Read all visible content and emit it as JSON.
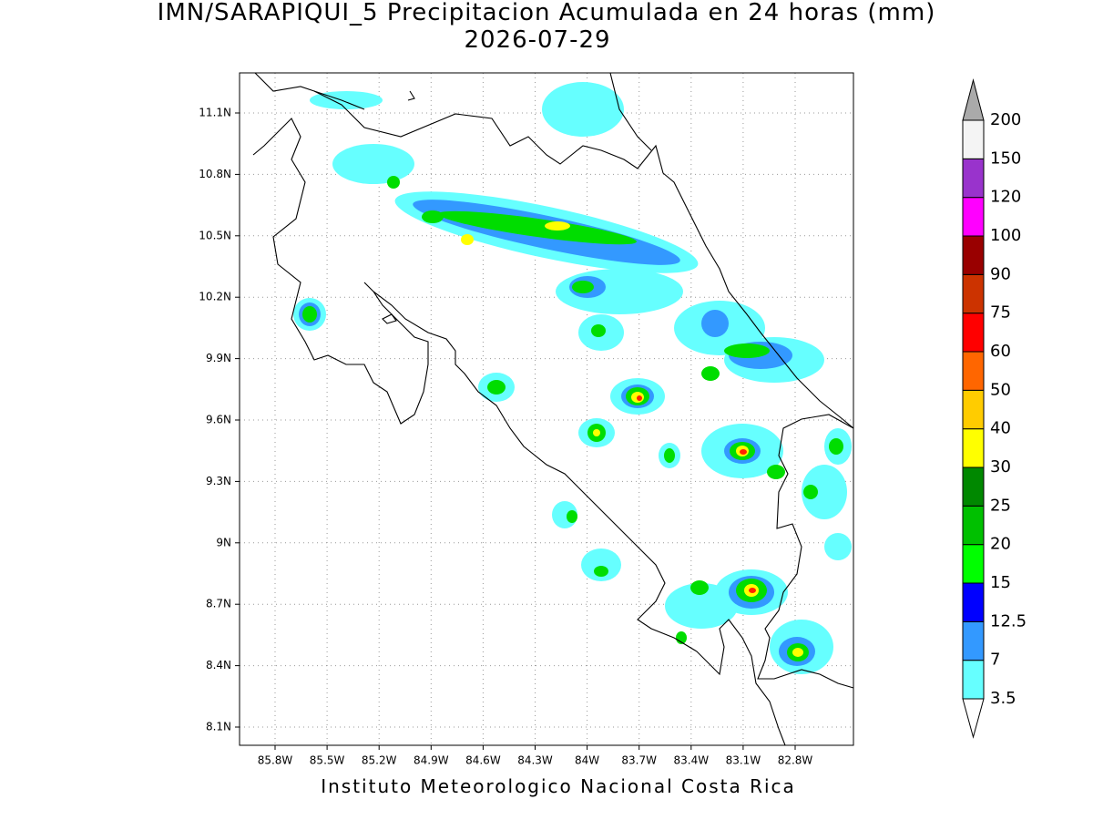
{
  "title": "IMN/SARAPIQUI_5 Precipitacion Acumulada en 24 horas (mm)",
  "date": "2026-07-29",
  "footer": "Instituto Meteorologico Nacional Costa Rica",
  "map": {
    "lat_ticks": [
      {
        "value": 11.1,
        "label": "11.1N"
      },
      {
        "value": 10.8,
        "label": "10.8N"
      },
      {
        "value": 10.5,
        "label": "10.5N"
      },
      {
        "value": 10.2,
        "label": "10.2N"
      },
      {
        "value": 9.9,
        "label": "9.9N"
      },
      {
        "value": 9.6,
        "label": "9.6N"
      },
      {
        "value": 9.3,
        "label": "9.3N"
      },
      {
        "value": 9,
        "label": "9N"
      },
      {
        "value": 8.7,
        "label": "8.7N"
      },
      {
        "value": 8.4,
        "label": "8.4N"
      },
      {
        "value": 8.1,
        "label": "8.1N"
      }
    ],
    "lon_ticks": [
      {
        "value": -85.8,
        "label": "85.8W"
      },
      {
        "value": -85.5,
        "label": "85.5W"
      },
      {
        "value": -85.2,
        "label": "85.2W"
      },
      {
        "value": -84.9,
        "label": "84.9W"
      },
      {
        "value": -84.6,
        "label": "84.6W"
      },
      {
        "value": -84.3,
        "label": "84.3W"
      },
      {
        "value": -84,
        "label": "84W"
      },
      {
        "value": -83.7,
        "label": "83.7W"
      },
      {
        "value": -83.4,
        "label": "83.4W"
      },
      {
        "value": -83.1,
        "label": "83.1W"
      },
      {
        "value": -82.8,
        "label": "82.8W"
      }
    ]
  },
  "colorbar": {
    "levels": [
      3.5,
      7,
      12.5,
      15,
      20,
      25,
      30,
      40,
      50,
      60,
      75,
      90,
      100,
      120,
      150,
      200
    ],
    "colors": [
      "#66ffff",
      "#3399ff",
      "#0000ff",
      "#00ff00",
      "#00c000",
      "#008800",
      "#ffff00",
      "#ffcc00",
      "#ff6600",
      "#ff0000",
      "#cc3300",
      "#990000",
      "#ff00ff",
      "#9933cc",
      "#f4f4f4"
    ],
    "under_color": "#ffffff",
    "over_color": "#aaaaaa"
  }
}
